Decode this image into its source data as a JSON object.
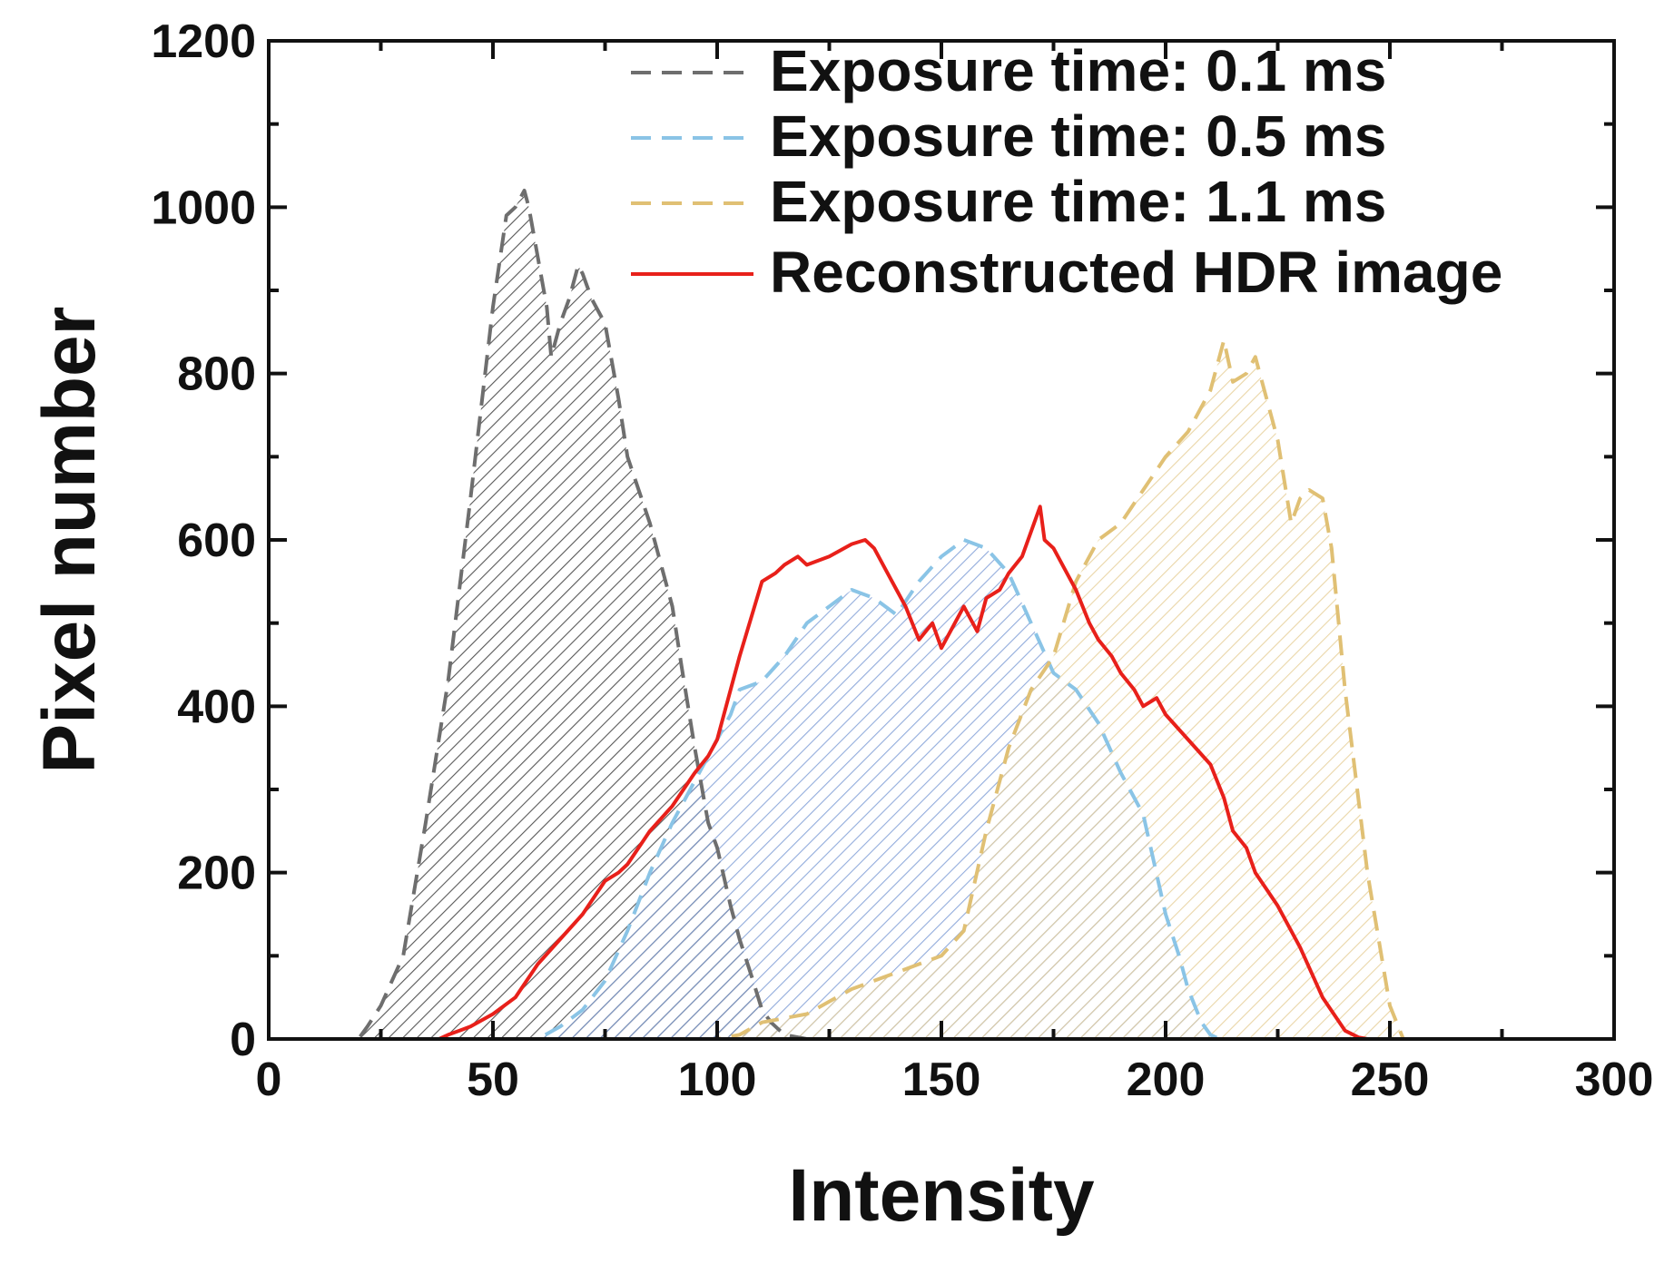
{
  "chart_data": {
    "type": "area",
    "title": "",
    "xlabel": "Intensity",
    "ylabel": "Pixel number",
    "xlim": [
      0,
      300
    ],
    "ylim": [
      0,
      1200
    ],
    "xticks": [
      0,
      50,
      100,
      150,
      200,
      250,
      300
    ],
    "yticks": [
      0,
      200,
      400,
      600,
      800,
      1000,
      1200
    ],
    "grid": false,
    "legend_position": "top-right",
    "series": [
      {
        "name": "Exposure time: 0.1 ms",
        "style": "dashed",
        "fill": "hatched",
        "color": "#6e6e6e",
        "hatch_color": "#3a3a3a",
        "x": [
          0,
          20,
          22,
          25,
          30,
          35,
          40,
          45,
          50,
          53,
          55,
          57,
          58,
          60,
          62,
          63,
          65,
          67,
          69,
          70,
          72,
          75,
          78,
          80,
          85,
          88,
          90,
          92,
          95,
          98,
          100,
          103,
          105,
          108,
          110,
          112,
          115,
          120,
          256
        ],
        "values": [
          0,
          0,
          15,
          40,
          100,
          260,
          430,
          650,
          880,
          990,
          1000,
          1020,
          1000,
          940,
          880,
          820,
          860,
          890,
          930,
          920,
          890,
          860,
          770,
          700,
          620,
          560,
          520,
          450,
          350,
          260,
          230,
          160,
          120,
          70,
          35,
          20,
          5,
          0,
          0
        ]
      },
      {
        "name": "Exposure time: 0.5 ms",
        "style": "dashed",
        "fill": "hatched",
        "color": "#8ac4e6",
        "hatch_color": "#7f9ed6",
        "x": [
          0,
          60,
          65,
          70,
          75,
          80,
          85,
          90,
          95,
          100,
          103,
          105,
          110,
          115,
          120,
          125,
          130,
          135,
          140,
          145,
          150,
          155,
          160,
          165,
          170,
          175,
          180,
          185,
          190,
          195,
          200,
          203,
          205,
          208,
          210,
          212,
          256
        ],
        "values": [
          0,
          0,
          15,
          35,
          70,
          130,
          200,
          260,
          310,
          360,
          390,
          420,
          430,
          460,
          500,
          520,
          540,
          530,
          510,
          550,
          580,
          600,
          590,
          560,
          500,
          440,
          420,
          380,
          320,
          270,
          150,
          100,
          60,
          20,
          5,
          0,
          0
        ]
      },
      {
        "name": "Exposure time: 1.1 ms",
        "style": "dashed",
        "fill": "hatched",
        "color": "#e0c074",
        "hatch_color": "#e6cf99",
        "x": [
          0,
          100,
          105,
          110,
          120,
          130,
          140,
          150,
          155,
          160,
          165,
          170,
          175,
          180,
          185,
          190,
          195,
          200,
          205,
          210,
          213,
          215,
          218,
          220,
          222,
          225,
          228,
          230,
          232,
          235,
          237,
          240,
          245,
          250,
          253,
          256
        ],
        "values": [
          0,
          0,
          5,
          20,
          30,
          60,
          80,
          100,
          130,
          250,
          350,
          420,
          460,
          550,
          600,
          620,
          660,
          700,
          730,
          780,
          840,
          790,
          800,
          820,
          780,
          720,
          620,
          650,
          660,
          650,
          590,
          420,
          200,
          40,
          0,
          0
        ]
      },
      {
        "name": "Reconstructed HDR image",
        "style": "solid",
        "fill": "none",
        "color": "#e8201a",
        "x": [
          0,
          38,
          40,
          45,
          50,
          55,
          60,
          65,
          70,
          75,
          78,
          80,
          85,
          90,
          95,
          98,
          100,
          105,
          110,
          113,
          115,
          118,
          120,
          125,
          130,
          133,
          135,
          138,
          140,
          142,
          145,
          148,
          150,
          152,
          155,
          158,
          160,
          163,
          165,
          168,
          170,
          172,
          173,
          175,
          178,
          180,
          183,
          185,
          188,
          190,
          193,
          195,
          198,
          200,
          205,
          210,
          213,
          215,
          218,
          220,
          225,
          230,
          235,
          240,
          243,
          245,
          256
        ],
        "values": [
          0,
          0,
          5,
          15,
          30,
          50,
          90,
          120,
          150,
          190,
          200,
          210,
          250,
          280,
          320,
          340,
          360,
          460,
          550,
          560,
          570,
          580,
          570,
          580,
          595,
          600,
          590,
          560,
          540,
          520,
          480,
          500,
          470,
          490,
          520,
          490,
          530,
          540,
          560,
          580,
          610,
          640,
          600,
          590,
          560,
          540,
          500,
          480,
          460,
          440,
          420,
          400,
          410,
          390,
          360,
          330,
          290,
          250,
          230,
          200,
          160,
          110,
          50,
          10,
          2,
          0,
          0
        ]
      }
    ]
  }
}
